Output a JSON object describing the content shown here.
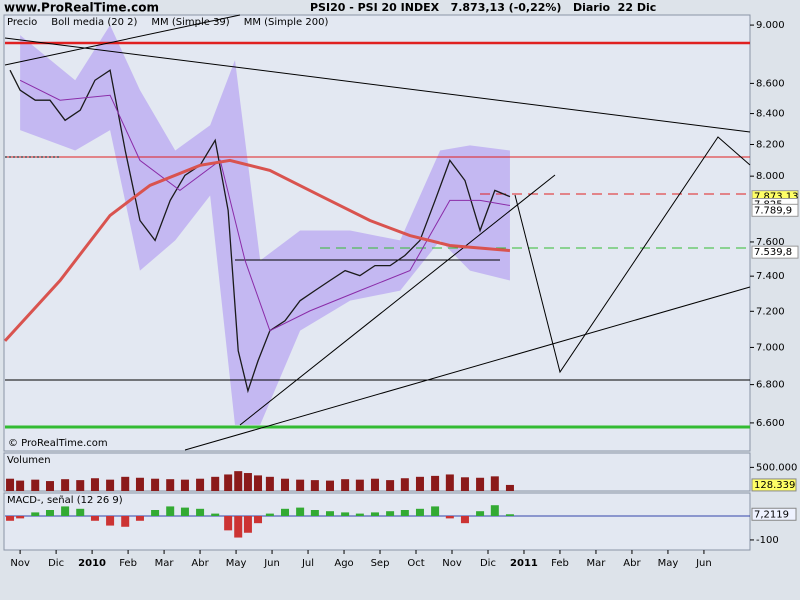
{
  "header": {
    "site": "www.ProRealTime.com",
    "title": "PSI20 - PSI 20 INDEX   7.873,13 (-0,22%)   Diario  22 Dic",
    "watermark": "© ProRealTime.com"
  },
  "chart_data": [
    {
      "type": "line",
      "log_scale": true,
      "ylim": [
        6457,
        9071
      ],
      "yticks": [
        {
          "value": 9000,
          "label": "9.000"
        },
        {
          "value": 8600,
          "label": "8.600"
        },
        {
          "value": 8400,
          "label": "8.400"
        },
        {
          "value": 8200,
          "label": "8.200"
        },
        {
          "value": 8000,
          "label": "8.000"
        },
        {
          "value": 7600,
          "label": "7.600"
        },
        {
          "value": 7400,
          "label": "7.400"
        },
        {
          "value": 7200,
          "label": "7.200"
        },
        {
          "value": 7000,
          "label": "7.000"
        },
        {
          "value": 6800,
          "label": "6.800"
        },
        {
          "value": 6600,
          "label": "6.600"
        }
      ],
      "xlim": [
        -0.42,
        20.28
      ],
      "series": [
        {
          "name": "Precio",
          "color": "#1a1a1a",
          "x": [
            -0.28,
            0,
            0.42,
            0.83,
            1.25,
            1.67,
            2.08,
            2.5,
            2.92,
            3.33,
            3.75,
            4.17,
            4.58,
            5,
            5.42,
            5.78,
            6.06,
            6.33,
            6.61,
            6.94,
            7.36,
            7.78,
            8.19,
            8.61,
            9.03,
            9.44,
            9.86,
            10.28,
            10.69,
            11.11,
            11.53,
            11.94,
            12.36,
            12.78,
            13.19,
            13.61
          ],
          "values": [
            8689,
            8555,
            8488,
            8488,
            8356,
            8422,
            8621,
            8689,
            8162,
            7728,
            7609,
            7850,
            8005,
            8068,
            8227,
            7789,
            6982,
            6767,
            6927,
            7092,
            7147,
            7260,
            7317,
            7375,
            7432,
            7403,
            7461,
            7461,
            7520,
            7609,
            7850,
            8099,
            7973,
            7668,
            7912,
            7873.13
          ]
        },
        {
          "name": "Boll media (20 2)",
          "color": "#b9a8f2",
          "x": [
            0,
            1.53,
            2.5,
            3.33,
            4.31,
            5.28,
            5.97,
            6.67,
            7.78,
            9.17,
            10.56,
            11.67,
            12.5,
            13.61
          ],
          "upper": [
            8930,
            8621,
            9000,
            8555,
            8162,
            8324,
            8757,
            7491,
            7668,
            7668,
            7609,
            8162,
            8194,
            8162
          ],
          "lower": [
            8292,
            8162,
            8292,
            7432,
            7609,
            7880,
            6590,
            6590,
            7092,
            7260,
            7317,
            7609,
            7432,
            7375
          ]
        },
        {
          "name": "MM (Simple 39)",
          "color": "#8a2ca8",
          "x": [
            0,
            1.11,
            2.5,
            3.33,
            4.44,
            5.56,
            6.25,
            6.94,
            8.06,
            9.44,
            10.83,
            11.94,
            12.78,
            13.61
          ],
          "values": [
            8621,
            8488,
            8521,
            8099,
            7912,
            8099,
            7491,
            7092,
            7203,
            7317,
            7432,
            7850,
            7850,
            7819
          ]
        },
        {
          "name": "MM (Simple 200)",
          "color": "#d9534f",
          "x": [
            -0.42,
            1.11,
            2.5,
            3.61,
            5,
            5.83,
            6.94,
            8.33,
            9.72,
            10.83,
            11.94,
            13.61
          ],
          "values": [
            7036,
            7375,
            7759,
            7943,
            8068,
            8099,
            8036,
            7880,
            7728,
            7638,
            7579,
            7549
          ]
        }
      ],
      "price_labels": [
        {
          "value": 7873.13,
          "label": "7.873,13",
          "color": "#ffff66"
        },
        {
          "value": 7825,
          "label": "7.825",
          "color": "#ffffff"
        },
        {
          "value": 7789.9,
          "label": "7.789,9",
          "color": "#ffffff"
        },
        {
          "value": 7539.8,
          "label": "7.539,8",
          "color": "#ffffff"
        }
      ]
    },
    {
      "type": "bar",
      "title": "Volumen",
      "color": "#8b1a1a",
      "ylim": [
        0,
        804000
      ],
      "yticks": [
        {
          "value": 500000,
          "label": "500.000"
        }
      ],
      "xlim": [
        -0.42,
        20.28
      ],
      "x": [
        -0.28,
        0,
        0.42,
        0.83,
        1.25,
        1.67,
        2.08,
        2.5,
        2.92,
        3.33,
        3.75,
        4.17,
        4.58,
        5,
        5.42,
        5.78,
        6.06,
        6.33,
        6.61,
        6.94,
        7.36,
        7.78,
        8.19,
        8.61,
        9.03,
        9.44,
        9.86,
        10.28,
        10.69,
        11.11,
        11.53,
        11.94,
        12.36,
        12.78,
        13.19,
        13.61
      ],
      "values": [
        260000,
        220000,
        240000,
        210000,
        250000,
        230000,
        270000,
        240000,
        300000,
        280000,
        260000,
        250000,
        240000,
        260000,
        300000,
        350000,
        420000,
        380000,
        330000,
        300000,
        260000,
        240000,
        230000,
        220000,
        250000,
        240000,
        260000,
        230000,
        270000,
        300000,
        320000,
        350000,
        290000,
        280000,
        310000,
        128339
      ],
      "current": {
        "value": 128339,
        "label": "128.339"
      }
    },
    {
      "type": "bar",
      "title": "MACD-, señal (12 26 9)",
      "color": "#33aa33",
      "negative_color": "#cc3333",
      "ylim": [
        -142,
        96
      ],
      "yticks": [
        -100
      ],
      "xlim": [
        -0.42,
        20.28
      ],
      "xticks": [
        {
          "value": 0,
          "label": "Nov"
        },
        {
          "value": 1,
          "label": "Dic"
        },
        {
          "value": 2,
          "label": "2010"
        },
        {
          "value": 3,
          "label": "Feb"
        },
        {
          "value": 4,
          "label": "Mar"
        },
        {
          "value": 5,
          "label": "Abr"
        },
        {
          "value": 6,
          "label": "May"
        },
        {
          "value": 7,
          "label": "Jun"
        },
        {
          "value": 8,
          "label": "Jul"
        },
        {
          "value": 9,
          "label": "Ago"
        },
        {
          "value": 10,
          "label": "Sep"
        },
        {
          "value": 11,
          "label": "Oct"
        },
        {
          "value": 12,
          "label": "Nov"
        },
        {
          "value": 13,
          "label": "Dic"
        },
        {
          "value": 14,
          "label": "2011"
        },
        {
          "value": 15,
          "label": "Feb"
        },
        {
          "value": 16,
          "label": "Mar"
        },
        {
          "value": 17,
          "label": "Abr"
        },
        {
          "value": 18,
          "label": "May"
        },
        {
          "value": 19,
          "label": "Jun"
        }
      ],
      "x": [
        -0.28,
        0,
        0.42,
        0.83,
        1.25,
        1.67,
        2.08,
        2.5,
        2.92,
        3.33,
        3.75,
        4.17,
        4.58,
        5,
        5.42,
        5.78,
        6.06,
        6.33,
        6.61,
        6.94,
        7.36,
        7.78,
        8.19,
        8.61,
        9.03,
        9.44,
        9.86,
        10.28,
        10.69,
        11.11,
        11.53,
        11.94,
        12.36,
        12.78,
        13.19,
        13.61
      ],
      "values": [
        -20,
        -10,
        15,
        25,
        40,
        30,
        -20,
        -40,
        -45,
        -20,
        25,
        40,
        35,
        30,
        10,
        -60,
        -90,
        -70,
        -30,
        10,
        30,
        35,
        25,
        20,
        15,
        10,
        15,
        20,
        25,
        30,
        40,
        -10,
        -30,
        20,
        45,
        7.2119
      ],
      "current": {
        "value": 7.2119,
        "label": "7,2119"
      }
    }
  ]
}
